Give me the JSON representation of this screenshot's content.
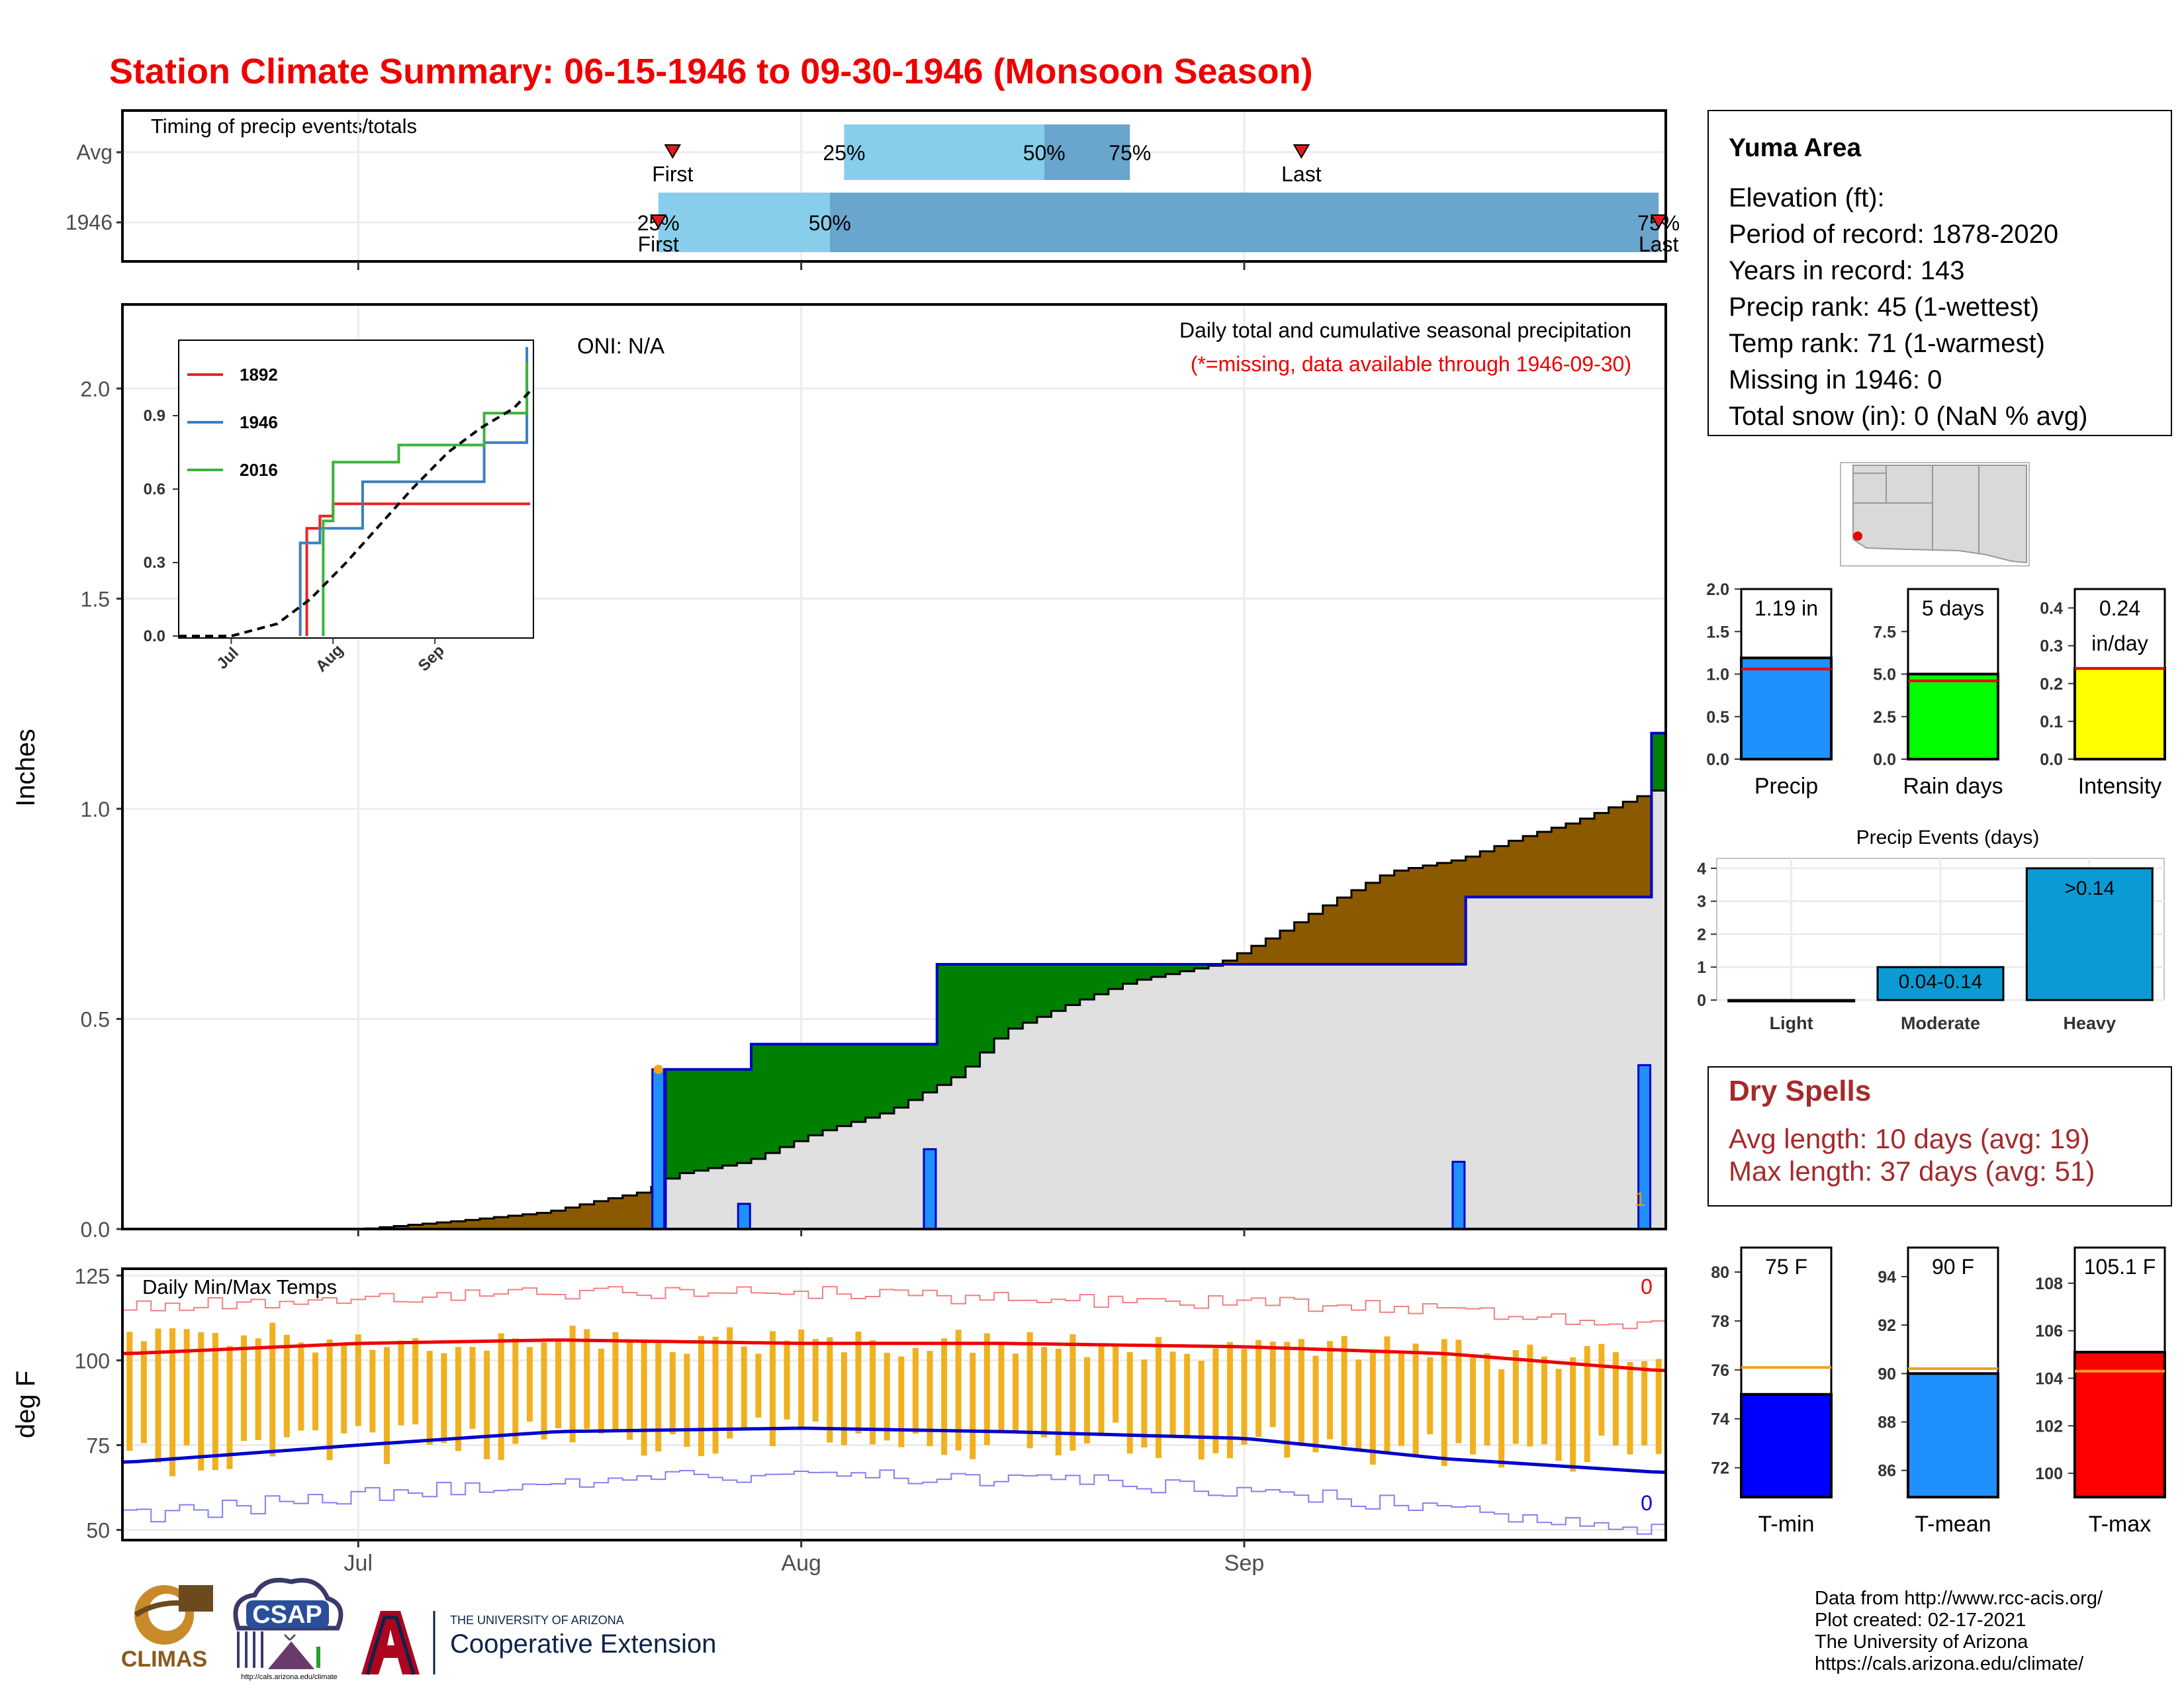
{
  "page": {
    "title": "Station Climate Summary: 06-15-1946 to 09-30-1946 (Monsoon Season)",
    "accent_color": "#ee0000"
  },
  "timing": {
    "title": "Timing of precip events/totals",
    "rows": [
      "Avg",
      "1946"
    ],
    "first_label": "First",
    "last_label": "Last",
    "pct_labels": [
      "25%",
      "50%",
      "75%"
    ]
  },
  "precip": {
    "ylabel": "Inches",
    "oni": "ONI: N/A",
    "note1": "Daily total and cumulative seasonal precipitation",
    "note2": "(*=missing, data available through 1946-09-30)",
    "marker": "1"
  },
  "inset": {
    "legend": [
      "1892",
      "1946",
      "2016"
    ],
    "colors": [
      "#ee2222",
      "#3a7fc0",
      "#3bb33b"
    ]
  },
  "temps": {
    "title": "Daily Min/Max Temps",
    "ylabel": "deg F",
    "count_high": "0",
    "count_low": "0"
  },
  "x_axis": {
    "months": [
      "Jul",
      "Aug",
      "Sep"
    ]
  },
  "info": {
    "station": "Yuma Area",
    "lines": [
      "Elevation (ft):",
      "Period of record: 1878-2020",
      "Years in record: 143",
      "Precip rank: 45 (1-wettest)",
      "Temp rank: 71 (1-warmest)",
      "Missing in 1946: 0",
      "Total snow (in): 0 (NaN % avg)"
    ]
  },
  "bars_top": {
    "precip": {
      "label": "Precip",
      "value_text": "1.19 in"
    },
    "raindays": {
      "label": "Rain days",
      "value_text": "5 days"
    },
    "intensity": {
      "label": "Intensity",
      "value_text": "0.24",
      "unit": "in/day"
    }
  },
  "events": {
    "title": "Precip Events (days)",
    "labels": [
      "Light",
      "Moderate",
      "Heavy"
    ],
    "value_labels": [
      "",
      "0.04-0.14",
      ">0.14"
    ]
  },
  "dry_spells": {
    "title": "Dry Spells",
    "avg": "Avg length: 10 days (avg: 19)",
    "max": "Max length: 37 days (avg: 51)"
  },
  "bars_temp": {
    "tmin": {
      "label": "T-min",
      "value_text": "75 F"
    },
    "tmean": {
      "label": "T-mean",
      "value_text": "90 F"
    },
    "tmax": {
      "label": "T-max",
      "value_text": "105.1 F"
    }
  },
  "credits": [
    "Data from http://www.rcc-acis.org/",
    "Plot created: 02-17-2021",
    "The University of Arizona",
    "https://cals.arizona.edu/climate/"
  ],
  "logos": {
    "climas": "CLIMAS",
    "csap": "CSAP",
    "csap_url": "http://cals.arizona.edu/climate",
    "ua_small": "THE UNIVERSITY OF ARIZONA",
    "ua_big": "Cooperative Extension"
  },
  "chart_data": [
    {
      "type": "timing",
      "rows": [
        {
          "name": "Avg",
          "first": "1946-07-23",
          "p25": "1946-08-04",
          "p50": "1946-08-18",
          "p75": "1946-08-24",
          "last": "1946-09-05"
        },
        {
          "name": "1946",
          "first": "1946-07-22",
          "p25": "1946-07-22",
          "p50": "1946-08-03",
          "p75": "1946-09-30",
          "last": "1946-09-30"
        }
      ]
    },
    {
      "type": "area",
      "ylim": [
        0,
        2.2
      ],
      "yticks": [
        0.0,
        0.5,
        1.0,
        1.5,
        2.0
      ],
      "daily_precip": [
        {
          "date": "1946-07-22",
          "value": 0.38
        },
        {
          "date": "1946-07-28",
          "value": 0.06
        },
        {
          "date": "1946-08-10",
          "value": 0.19
        },
        {
          "date": "1946-09-16",
          "value": 0.16
        },
        {
          "date": "1946-09-29",
          "value": 0.39
        }
      ],
      "cumulative_1946": [
        {
          "date": "1946-06-15",
          "value": 0.0
        },
        {
          "date": "1946-07-22",
          "value": 0.38
        },
        {
          "date": "1946-07-28",
          "value": 0.44
        },
        {
          "date": "1946-08-10",
          "value": 0.63
        },
        {
          "date": "1946-09-16",
          "value": 0.79
        },
        {
          "date": "1946-09-29",
          "value": 1.18
        },
        {
          "date": "1946-09-30",
          "value": 1.18
        }
      ],
      "cumulative_avg": [
        {
          "date": "1946-06-15",
          "value": 0.0
        },
        {
          "date": "1946-07-01",
          "value": 0.0
        },
        {
          "date": "1946-07-08",
          "value": 0.02
        },
        {
          "date": "1946-07-14",
          "value": 0.04
        },
        {
          "date": "1946-07-18",
          "value": 0.07
        },
        {
          "date": "1946-07-21",
          "value": 0.09
        },
        {
          "date": "1946-07-23",
          "value": 0.13
        },
        {
          "date": "1946-07-28",
          "value": 0.16
        },
        {
          "date": "1946-08-02",
          "value": 0.23
        },
        {
          "date": "1946-08-07",
          "value": 0.28
        },
        {
          "date": "1946-08-12",
          "value": 0.37
        },
        {
          "date": "1946-08-15",
          "value": 0.47
        },
        {
          "date": "1946-08-20",
          "value": 0.54
        },
        {
          "date": "1946-08-24",
          "value": 0.59
        },
        {
          "date": "1946-08-30",
          "value": 0.63
        },
        {
          "date": "1946-09-03",
          "value": 0.7
        },
        {
          "date": "1946-09-07",
          "value": 0.78
        },
        {
          "date": "1946-09-11",
          "value": 0.85
        },
        {
          "date": "1946-09-16",
          "value": 0.88
        },
        {
          "date": "1946-09-20",
          "value": 0.93
        },
        {
          "date": "1946-09-24",
          "value": 0.97
        },
        {
          "date": "1946-09-27",
          "value": 1.01
        },
        {
          "date": "1946-09-30",
          "value": 1.05
        }
      ]
    },
    {
      "type": "line",
      "title": "inset cumulative precipitation",
      "yticks": [
        0.0,
        0.3,
        0.6,
        0.9
      ],
      "series": [
        {
          "name": "1892",
          "points": [
            [
              "1946-07-24",
              0.0
            ],
            [
              "1946-07-24",
              0.44
            ],
            [
              "1946-07-28",
              0.44
            ],
            [
              "1946-07-28",
              0.49
            ],
            [
              "1946-08-01",
              0.49
            ],
            [
              "1946-08-01",
              0.54
            ],
            [
              "1946-09-30",
              0.54
            ]
          ]
        },
        {
          "name": "1946",
          "points": [
            [
              "1946-07-22",
              0.0
            ],
            [
              "1946-07-22",
              0.38
            ],
            [
              "1946-07-28",
              0.38
            ],
            [
              "1946-07-28",
              0.44
            ],
            [
              "1946-08-10",
              0.44
            ],
            [
              "1946-08-10",
              0.63
            ],
            [
              "1946-09-16",
              0.63
            ],
            [
              "1946-09-16",
              0.79
            ],
            [
              "1946-09-29",
              0.79
            ],
            [
              "1946-09-29",
              1.18
            ]
          ]
        },
        {
          "name": "2016",
          "points": [
            [
              "1946-07-29",
              0.0
            ],
            [
              "1946-07-29",
              0.47
            ],
            [
              "1946-08-01",
              0.47
            ],
            [
              "1946-08-01",
              0.71
            ],
            [
              "1946-08-21",
              0.71
            ],
            [
              "1946-08-21",
              0.78
            ],
            [
              "1946-09-16",
              0.78
            ],
            [
              "1946-09-16",
              0.91
            ],
            [
              "1946-09-29",
              0.91
            ],
            [
              "1946-09-29",
              1.12
            ]
          ]
        },
        {
          "name": "average",
          "points": [
            [
              "1946-06-15",
              0.0
            ],
            [
              "1946-07-01",
              0.0
            ],
            [
              "1946-07-15",
              0.05
            ],
            [
              "1946-07-25",
              0.15
            ],
            [
              "1946-08-05",
              0.3
            ],
            [
              "1946-08-15",
              0.45
            ],
            [
              "1946-08-25",
              0.6
            ],
            [
              "1946-09-05",
              0.75
            ],
            [
              "1946-09-15",
              0.85
            ],
            [
              "1946-09-25",
              0.93
            ],
            [
              "1946-09-30",
              1.0
            ]
          ]
        }
      ]
    },
    {
      "type": "line",
      "title": "Daily Min/Max Temps",
      "ylim": [
        47,
        127
      ],
      "yticks": [
        50,
        75,
        100,
        125
      ],
      "normal_max": [
        [
          "1946-06-15",
          102
        ],
        [
          "1946-07-01",
          105
        ],
        [
          "1946-07-15",
          106
        ],
        [
          "1946-08-01",
          105
        ],
        [
          "1946-08-15",
          105
        ],
        [
          "1946-09-01",
          104
        ],
        [
          "1946-09-15",
          102
        ],
        [
          "1946-09-30",
          97
        ]
      ],
      "normal_min": [
        [
          "1946-06-15",
          70
        ],
        [
          "1946-07-01",
          75
        ],
        [
          "1946-07-15",
          79
        ],
        [
          "1946-08-01",
          80
        ],
        [
          "1946-08-15",
          79
        ],
        [
          "1946-09-01",
          77
        ],
        [
          "1946-09-15",
          71
        ],
        [
          "1946-09-30",
          67
        ]
      ],
      "record_max": [
        [
          "1946-06-15",
          116
        ],
        [
          "1946-07-01",
          118
        ],
        [
          "1946-07-15",
          120
        ],
        [
          "1946-08-01",
          120
        ],
        [
          "1946-08-15",
          118
        ],
        [
          "1946-09-01",
          117
        ],
        [
          "1946-09-15",
          115
        ],
        [
          "1946-09-30",
          110
        ]
      ],
      "record_min": [
        [
          "1946-06-15",
          54
        ],
        [
          "1946-07-01",
          60
        ],
        [
          "1946-07-15",
          64
        ],
        [
          "1946-08-01",
          67
        ],
        [
          "1946-08-15",
          65
        ],
        [
          "1946-09-01",
          62
        ],
        [
          "1946-09-15",
          56
        ],
        [
          "1946-09-30",
          50
        ]
      ],
      "daily_max_mean": [
        [
          "1946-06-15",
          108
        ],
        [
          "1946-07-01",
          106
        ],
        [
          "1946-08-01",
          106
        ],
        [
          "1946-09-01",
          104
        ],
        [
          "1946-09-30",
          100
        ]
      ],
      "daily_min_mean": [
        [
          "1946-06-15",
          70
        ],
        [
          "1946-07-01",
          75
        ],
        [
          "1946-08-01",
          78
        ],
        [
          "1946-09-01",
          75
        ],
        [
          "1946-09-30",
          72
        ]
      ]
    },
    {
      "type": "bar",
      "title": "Precip",
      "ylim": [
        0,
        2.0
      ],
      "yticks": [
        0.0,
        0.5,
        1.0,
        1.5,
        2.0
      ],
      "value": 1.19,
      "average": 1.06,
      "color": "#1e90ff"
    },
    {
      "type": "bar",
      "title": "Rain days",
      "ylim": [
        0,
        10
      ],
      "yticks": [
        0.0,
        2.5,
        5.0,
        7.5
      ],
      "value": 5,
      "average": 4.6,
      "color": "#00ff00"
    },
    {
      "type": "bar",
      "title": "Intensity",
      "ylim": [
        0,
        0.45
      ],
      "yticks": [
        0.0,
        0.1,
        0.2,
        0.3,
        0.4
      ],
      "value": 0.24,
      "average": 0.24,
      "color": "#ffff00"
    },
    {
      "type": "bar",
      "title": "Precip Events (days)",
      "categories": [
        "Light",
        "Moderate",
        "Heavy"
      ],
      "values": [
        0,
        1,
        4
      ],
      "ylim": [
        0,
        4.3
      ],
      "yticks": [
        0,
        1,
        2,
        3,
        4
      ],
      "color": "#0b9bd4"
    },
    {
      "type": "bar",
      "title": "T-min",
      "ylim": [
        70.8,
        81
      ],
      "yticks": [
        72,
        74,
        76,
        78,
        80
      ],
      "value": 75,
      "average": 76.1,
      "color": "#0000ff"
    },
    {
      "type": "bar",
      "title": "T-mean",
      "ylim": [
        84.9,
        95.2
      ],
      "yticks": [
        86,
        88,
        90,
        92,
        94
      ],
      "value": 90,
      "average": 90.2,
      "color": "#1e90ff"
    },
    {
      "type": "bar",
      "title": "T-max",
      "ylim": [
        99,
        109.5
      ],
      "yticks": [
        100,
        102,
        104,
        106,
        108
      ],
      "value": 105.1,
      "average": 104.3,
      "color": "#ff0000"
    }
  ]
}
